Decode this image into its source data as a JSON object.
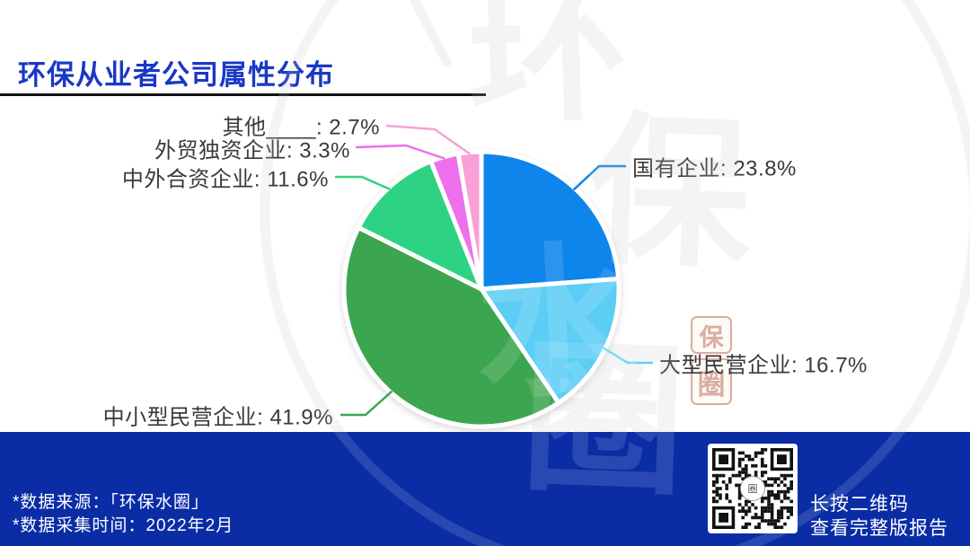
{
  "header": {
    "title": "环保从业者公司属性分布"
  },
  "chart_data": {
    "type": "pie",
    "title": "环保从业者公司属性分布",
    "unit": "%",
    "start_angle_deg": 0,
    "direction": "clockwise",
    "legend": "none",
    "labels_outside_with_leader_lines": true,
    "slices": [
      {
        "label": "国有企业",
        "value": 23.8,
        "color": "#0C85EA"
      },
      {
        "label": "大型民营企业",
        "value": 16.7,
        "color": "#5BCDF5"
      },
      {
        "label": "中小型民营企业",
        "value": 41.9,
        "color": "#3BA64F"
      },
      {
        "label": "中外合资企业",
        "value": 11.6,
        "color": "#2FD283"
      },
      {
        "label": "外贸独资企业",
        "value": 3.3,
        "color": "#EE6FED"
      },
      {
        "label": "其他____",
        "value": 2.7,
        "color": "#F9A1D6"
      }
    ],
    "label_format": "{label}: {value}%"
  },
  "footer": {
    "source_note": "*数据来源：「环保水圈」",
    "collect_note": "*数据采集时间：2022年2月",
    "qr_caption_line1": "长按二维码",
    "qr_caption_line2": "查看完整版报告"
  },
  "watermark": {
    "vertical_text": "环保水圈",
    "seal_chars": [
      "保",
      "圈"
    ]
  },
  "colors": {
    "title_blue": "#1A38C6",
    "footer_bar": "#0A2DA6",
    "label_text": "#3A3A3A",
    "underline": "#111111",
    "watermark_gray": "#F3F3F3"
  }
}
